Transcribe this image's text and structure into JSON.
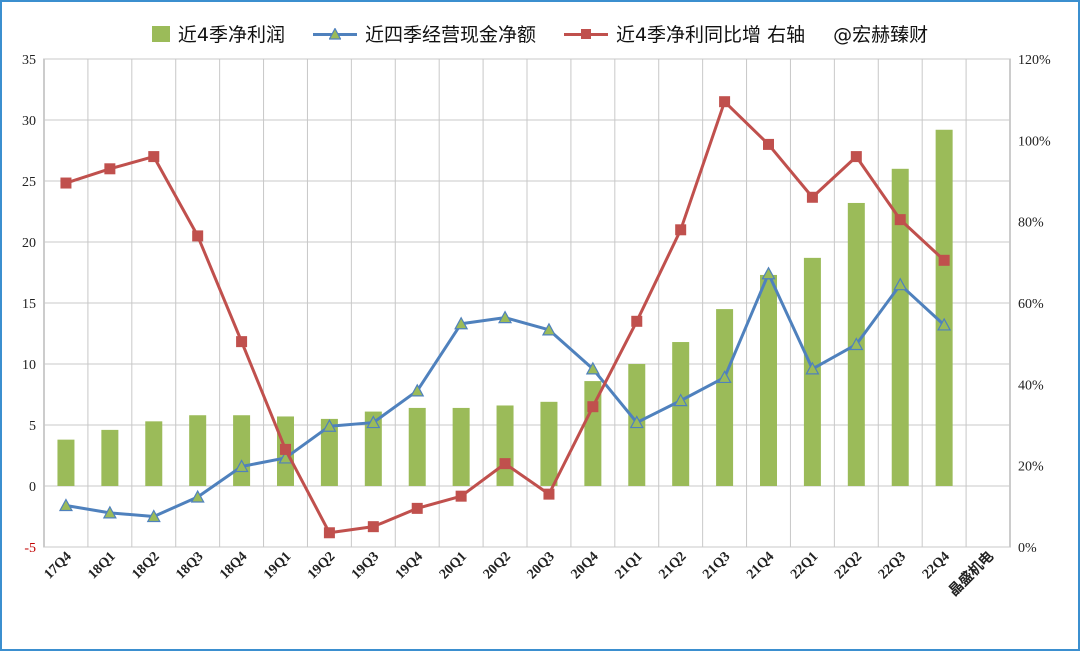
{
  "legend": {
    "items": [
      {
        "label": "近4季净利润",
        "color": "#9bbb59",
        "kind": "bar"
      },
      {
        "label": "近四季经营现金净额",
        "color": "#4f81bd",
        "kind": "line-triangle"
      },
      {
        "label": "近4季净利同比增 右轴",
        "color": "#c0504d",
        "kind": "line-square"
      }
    ],
    "watermark": "@宏赫臻财"
  },
  "chart_data": {
    "type": "bar",
    "categories": [
      "17Q4",
      "18Q1",
      "18Q2",
      "18Q3",
      "18Q4",
      "19Q1",
      "19Q2",
      "19Q3",
      "19Q4",
      "20Q1",
      "20Q2",
      "20Q3",
      "20Q4",
      "21Q1",
      "21Q2",
      "21Q3",
      "21Q4",
      "22Q1",
      "22Q2",
      "22Q3",
      "22Q4",
      "晶盛机电"
    ],
    "left_axis": {
      "ylim": [
        -5,
        35
      ],
      "ticks": [
        "-5",
        "0",
        "5",
        "10",
        "15",
        "20",
        "25",
        "30",
        "35"
      ],
      "tick_values": [
        -5,
        0,
        5,
        10,
        15,
        20,
        25,
        30,
        35
      ]
    },
    "right_axis": {
      "ylim": [
        0,
        120
      ],
      "ticks": [
        "0%",
        "20%",
        "40%",
        "60%",
        "80%",
        "100%",
        "120%"
      ],
      "tick_values": [
        0,
        20,
        40,
        60,
        80,
        100,
        120
      ]
    },
    "grid": true,
    "legend_position": "top",
    "series": [
      {
        "name": "近4季净利润",
        "type": "bar",
        "axis": "left",
        "color": "#9bbb59",
        "values": [
          3.8,
          4.6,
          5.3,
          5.8,
          5.8,
          5.7,
          5.5,
          6.1,
          6.4,
          6.4,
          6.6,
          6.9,
          8.6,
          10.0,
          11.8,
          14.5,
          17.3,
          18.7,
          23.2,
          26.0,
          29.2,
          null
        ]
      },
      {
        "name": "近四季经营现金净额",
        "type": "line",
        "marker": "triangle",
        "axis": "left",
        "color": "#4f81bd",
        "values": [
          -1.6,
          -2.2,
          -2.5,
          -0.9,
          1.6,
          2.3,
          4.9,
          5.2,
          7.8,
          13.3,
          13.8,
          12.8,
          9.6,
          5.2,
          7.0,
          8.9,
          17.4,
          9.6,
          11.6,
          16.5,
          13.2,
          null
        ]
      },
      {
        "name": "近4季净利同比增 右轴",
        "type": "line",
        "marker": "square",
        "axis": "right",
        "color": "#c0504d",
        "values": [
          89.5,
          93,
          96,
          76.5,
          50.5,
          24,
          3.5,
          5,
          9.5,
          12.5,
          20.5,
          13,
          34.5,
          55.5,
          78,
          109.5,
          99,
          86,
          96,
          80.5,
          70.5,
          null
        ]
      }
    ]
  }
}
